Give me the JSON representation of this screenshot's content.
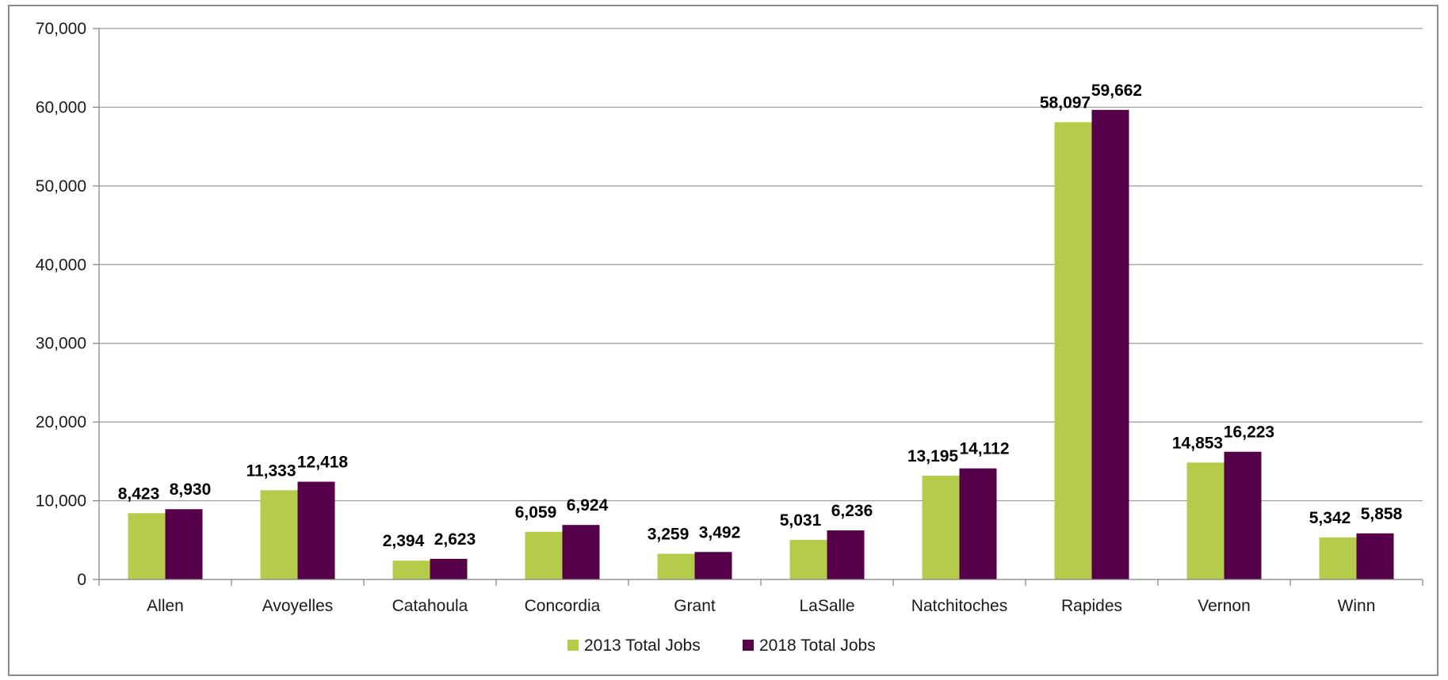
{
  "colors": {
    "series_2013": "#b5cc4a",
    "series_2018": "#560049",
    "gridline": "#9a9a9a",
    "axis": "#808080"
  },
  "chart_data": {
    "type": "bar",
    "title": "",
    "xlabel": "",
    "ylabel": "",
    "ylim": [
      0,
      70000
    ],
    "yticks": [
      0,
      10000,
      20000,
      30000,
      40000,
      50000,
      60000,
      70000
    ],
    "ytick_labels": [
      "0",
      "10,000",
      "20,000",
      "30,000",
      "40,000",
      "50,000",
      "60,000",
      "70,000"
    ],
    "grid": true,
    "legend_position": "bottom",
    "categories": [
      "Allen",
      "Avoyelles",
      "Catahoula",
      "Concordia",
      "Grant",
      "LaSalle",
      "Natchitoches",
      "Rapides",
      "Vernon",
      "Winn"
    ],
    "series": [
      {
        "name": "2013 Total Jobs",
        "values": [
          8423,
          11333,
          2394,
          6059,
          3259,
          5031,
          13195,
          58097,
          14853,
          5342
        ],
        "labels": [
          "8,423",
          "11,333",
          "2,394",
          "6,059",
          "3,259",
          "5,031",
          "13,195",
          "58,097",
          "14,853",
          "5,342"
        ]
      },
      {
        "name": "2018 Total Jobs",
        "values": [
          8930,
          12418,
          2623,
          6924,
          3492,
          6236,
          14112,
          59662,
          16223,
          5858
        ],
        "labels": [
          "8,930",
          "12,418",
          "2,623",
          "6,924",
          "3,492",
          "6,236",
          "14,112",
          "59,662",
          "16,223",
          "5,858"
        ]
      }
    ]
  }
}
